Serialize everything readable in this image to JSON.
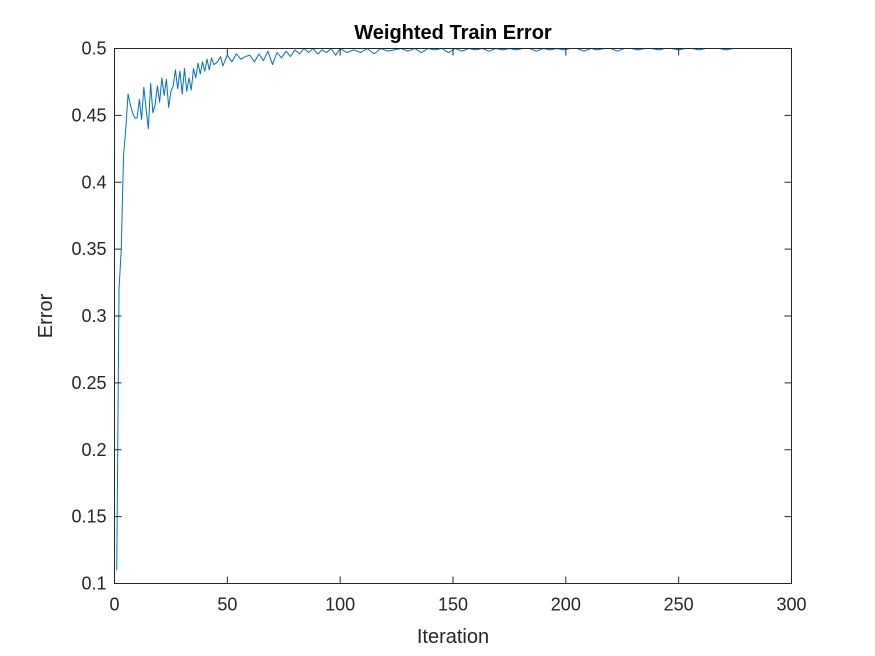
{
  "colors": {
    "background": "#ffffff",
    "axes": "#262626",
    "series": "#0072BD"
  },
  "chart_data": {
    "type": "line",
    "title": "Weighted Train Error",
    "xlabel": "Iteration",
    "ylabel": "Error",
    "xlim": [
      0,
      300
    ],
    "ylim": [
      0.1,
      0.5
    ],
    "xticks": [
      0,
      50,
      100,
      150,
      200,
      250,
      300
    ],
    "yticks": [
      0.1,
      0.15,
      0.2,
      0.25,
      0.3,
      0.35,
      0.4,
      0.45,
      0.5
    ],
    "xtick_labels": [
      "0",
      "50",
      "100",
      "150",
      "200",
      "250",
      "300"
    ],
    "ytick_labels": [
      "0.1",
      "0.15",
      "0.2",
      "0.25",
      "0.3",
      "0.35",
      "0.4",
      "0.45",
      "0.5"
    ],
    "grid": false,
    "box": true,
    "series": [
      {
        "x": [
          1,
          2,
          3,
          4,
          5,
          6,
          7,
          8,
          9,
          10,
          11,
          12,
          13,
          14,
          15,
          16,
          17,
          18,
          19,
          20,
          21,
          22,
          23,
          24,
          25,
          26,
          27,
          28,
          29,
          30,
          31,
          32,
          33,
          34,
          35,
          36,
          37,
          38,
          39,
          40,
          41,
          42,
          43,
          44,
          45,
          46,
          47,
          48,
          50,
          52,
          54,
          56,
          58,
          60,
          62,
          64,
          66,
          68,
          70,
          72,
          74,
          76,
          78,
          80,
          82,
          84,
          86,
          88,
          90,
          92,
          94,
          96,
          98,
          100,
          103,
          106,
          109,
          112,
          115,
          118,
          121,
          124,
          127,
          130,
          133,
          136,
          139,
          142,
          145,
          148,
          151,
          154,
          157,
          160,
          163,
          166,
          169,
          172,
          175,
          178,
          181,
          184,
          187,
          190,
          193,
          196,
          199,
          202,
          205,
          208,
          211,
          214,
          217,
          220,
          223,
          226,
          229,
          232,
          235,
          238,
          241,
          244,
          247,
          250,
          253,
          256,
          259,
          262,
          265,
          268,
          271,
          274,
          277
        ],
        "y": [
          0.11,
          0.32,
          0.35,
          0.42,
          0.44,
          0.466,
          0.458,
          0.452,
          0.448,
          0.448,
          0.462,
          0.447,
          0.471,
          0.455,
          0.44,
          0.474,
          0.452,
          0.458,
          0.472,
          0.46,
          0.478,
          0.465,
          0.477,
          0.456,
          0.468,
          0.472,
          0.484,
          0.47,
          0.483,
          0.466,
          0.485,
          0.468,
          0.478,
          0.469,
          0.485,
          0.478,
          0.489,
          0.481,
          0.49,
          0.483,
          0.492,
          0.484,
          0.493,
          0.488,
          0.489,
          0.491,
          0.494,
          0.487,
          0.495,
          0.49,
          0.496,
          0.492,
          0.494,
          0.495,
          0.49,
          0.496,
          0.491,
          0.498,
          0.488,
          0.497,
          0.493,
          0.498,
          0.494,
          0.499,
          0.496,
          0.5,
          0.497,
          0.5,
          0.496,
          0.499,
          0.497,
          0.5,
          0.495,
          0.5,
          0.497,
          0.499,
          0.497,
          0.5,
          0.496,
          0.5,
          0.498,
          0.499,
          0.5,
          0.498,
          0.5,
          0.497,
          0.5,
          0.499,
          0.5,
          0.497,
          0.5,
          0.498,
          0.5,
          0.499,
          0.5,
          0.498,
          0.5,
          0.499,
          0.5,
          0.499,
          0.5,
          0.5,
          0.498,
          0.5,
          0.499,
          0.5,
          0.499,
          0.5,
          0.5,
          0.498,
          0.5,
          0.499,
          0.5,
          0.5,
          0.498,
          0.5,
          0.5,
          0.499,
          0.5,
          0.5,
          0.499,
          0.5,
          0.5,
          0.499,
          0.5,
          0.5,
          0.499,
          0.5,
          0.5,
          0.5,
          0.499,
          0.5,
          0.5
        ]
      }
    ]
  }
}
